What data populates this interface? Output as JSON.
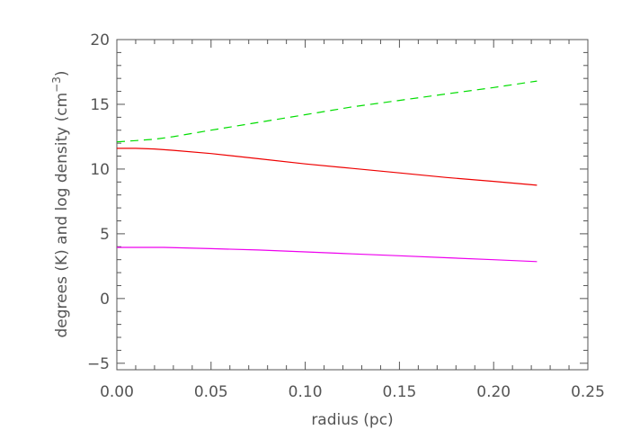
{
  "chart_data": {
    "type": "line",
    "title": "",
    "xlabel": "radius (pc)",
    "ylabel": {
      "before_superscript": "degrees (K) and log density (cm",
      "superscript": "−3",
      "after_superscript": ")"
    },
    "xlim": [
      0.0,
      0.25
    ],
    "ylim": [
      -5.5,
      20
    ],
    "x_ticks": [
      0.0,
      0.05,
      0.1,
      0.15,
      0.2,
      0.25
    ],
    "x_tick_labels": [
      "0.00",
      "0.05",
      "0.10",
      "0.15",
      "0.20",
      "0.25"
    ],
    "y_ticks": [
      -5,
      0,
      5,
      10,
      15,
      20
    ],
    "y_tick_labels": [
      "−5",
      "0",
      "5",
      "10",
      "15",
      "20"
    ],
    "grid": false,
    "legend": "none",
    "axis_color": "#555555",
    "series": [
      {
        "color": "#00dd00",
        "dash": true,
        "x": [
          0.0,
          0.01,
          0.02,
          0.03,
          0.05,
          0.075,
          0.1,
          0.125,
          0.15,
          0.175,
          0.2,
          0.223
        ],
        "y": [
          12.1,
          12.2,
          12.3,
          12.5,
          13.0,
          13.6,
          14.2,
          14.8,
          15.3,
          15.8,
          16.3,
          16.8
        ]
      },
      {
        "color": "#ee0000",
        "dash": false,
        "x": [
          0.0,
          0.01,
          0.02,
          0.03,
          0.05,
          0.075,
          0.1,
          0.125,
          0.15,
          0.175,
          0.2,
          0.223
        ],
        "y": [
          11.6,
          11.6,
          11.55,
          11.45,
          11.2,
          10.8,
          10.4,
          10.05,
          9.7,
          9.35,
          9.05,
          8.75
        ]
      },
      {
        "color": "#ee00ee",
        "dash": false,
        "x": [
          0.0,
          0.025,
          0.05,
          0.075,
          0.1,
          0.125,
          0.15,
          0.175,
          0.2,
          0.223
        ],
        "y": [
          3.95,
          3.95,
          3.85,
          3.75,
          3.6,
          3.45,
          3.3,
          3.15,
          3.0,
          2.85
        ]
      }
    ]
  }
}
